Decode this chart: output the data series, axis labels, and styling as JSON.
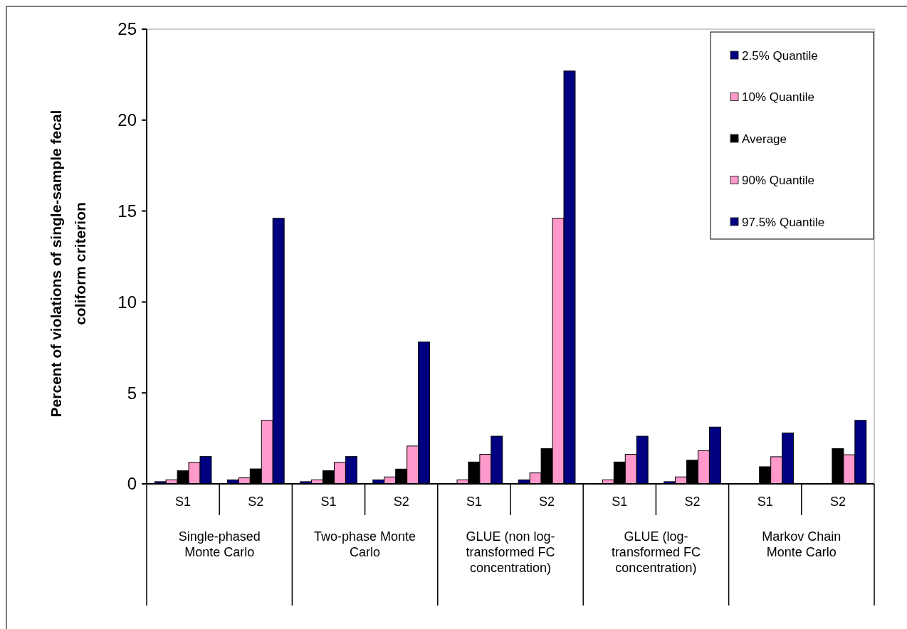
{
  "chart_data": {
    "type": "bar",
    "ylabel": "Percent of violations of single-sample fecal\ncoliform criterion",
    "categories": [
      "S1",
      "S2",
      "S1",
      "S2",
      "S1",
      "S2",
      "S1",
      "S2",
      "S1",
      "S2"
    ],
    "annotations": [
      "Single-phased\nMonte Carlo",
      "Two-phase Monte\nCarlo",
      "GLUE (non log-\ntransformed FC\nconcentration)",
      "GLUE (log-\ntransformed FC\nconcentration)",
      "Markov Chain\nMonte Carlo"
    ],
    "series": [
      {
        "name": "2.5% Quantile",
        "color": "#000080",
        "values": [
          0.12,
          0.22,
          0.12,
          0.22,
          0,
          0.22,
          0,
          0.12,
          0,
          0
        ]
      },
      {
        "name": "10% Quantile",
        "color": "#ff99cc",
        "values": [
          0.22,
          0.33,
          0.22,
          0.38,
          0.22,
          0.6,
          0.22,
          0.38,
          0,
          0
        ]
      },
      {
        "name": "Average",
        "color": "#000000",
        "values": [
          0.72,
          0.82,
          0.72,
          0.81,
          1.2,
          1.94,
          1.2,
          1.3,
          0.94,
          1.94
        ]
      },
      {
        "name": "90% Quantile",
        "color": "#ff99cc",
        "values": [
          1.18,
          3.49,
          1.18,
          2.08,
          1.62,
          14.6,
          1.62,
          1.82,
          1.49,
          1.6
        ]
      },
      {
        "name": "97.5% Quantile",
        "color": "#000080",
        "values": [
          1.5,
          14.6,
          1.5,
          7.8,
          2.62,
          22.7,
          2.62,
          3.12,
          2.8,
          3.49
        ]
      }
    ],
    "ylim": [
      0,
      25
    ],
    "yticks": [
      0,
      5,
      10,
      15,
      20,
      25
    ],
    "legend": "top right"
  }
}
